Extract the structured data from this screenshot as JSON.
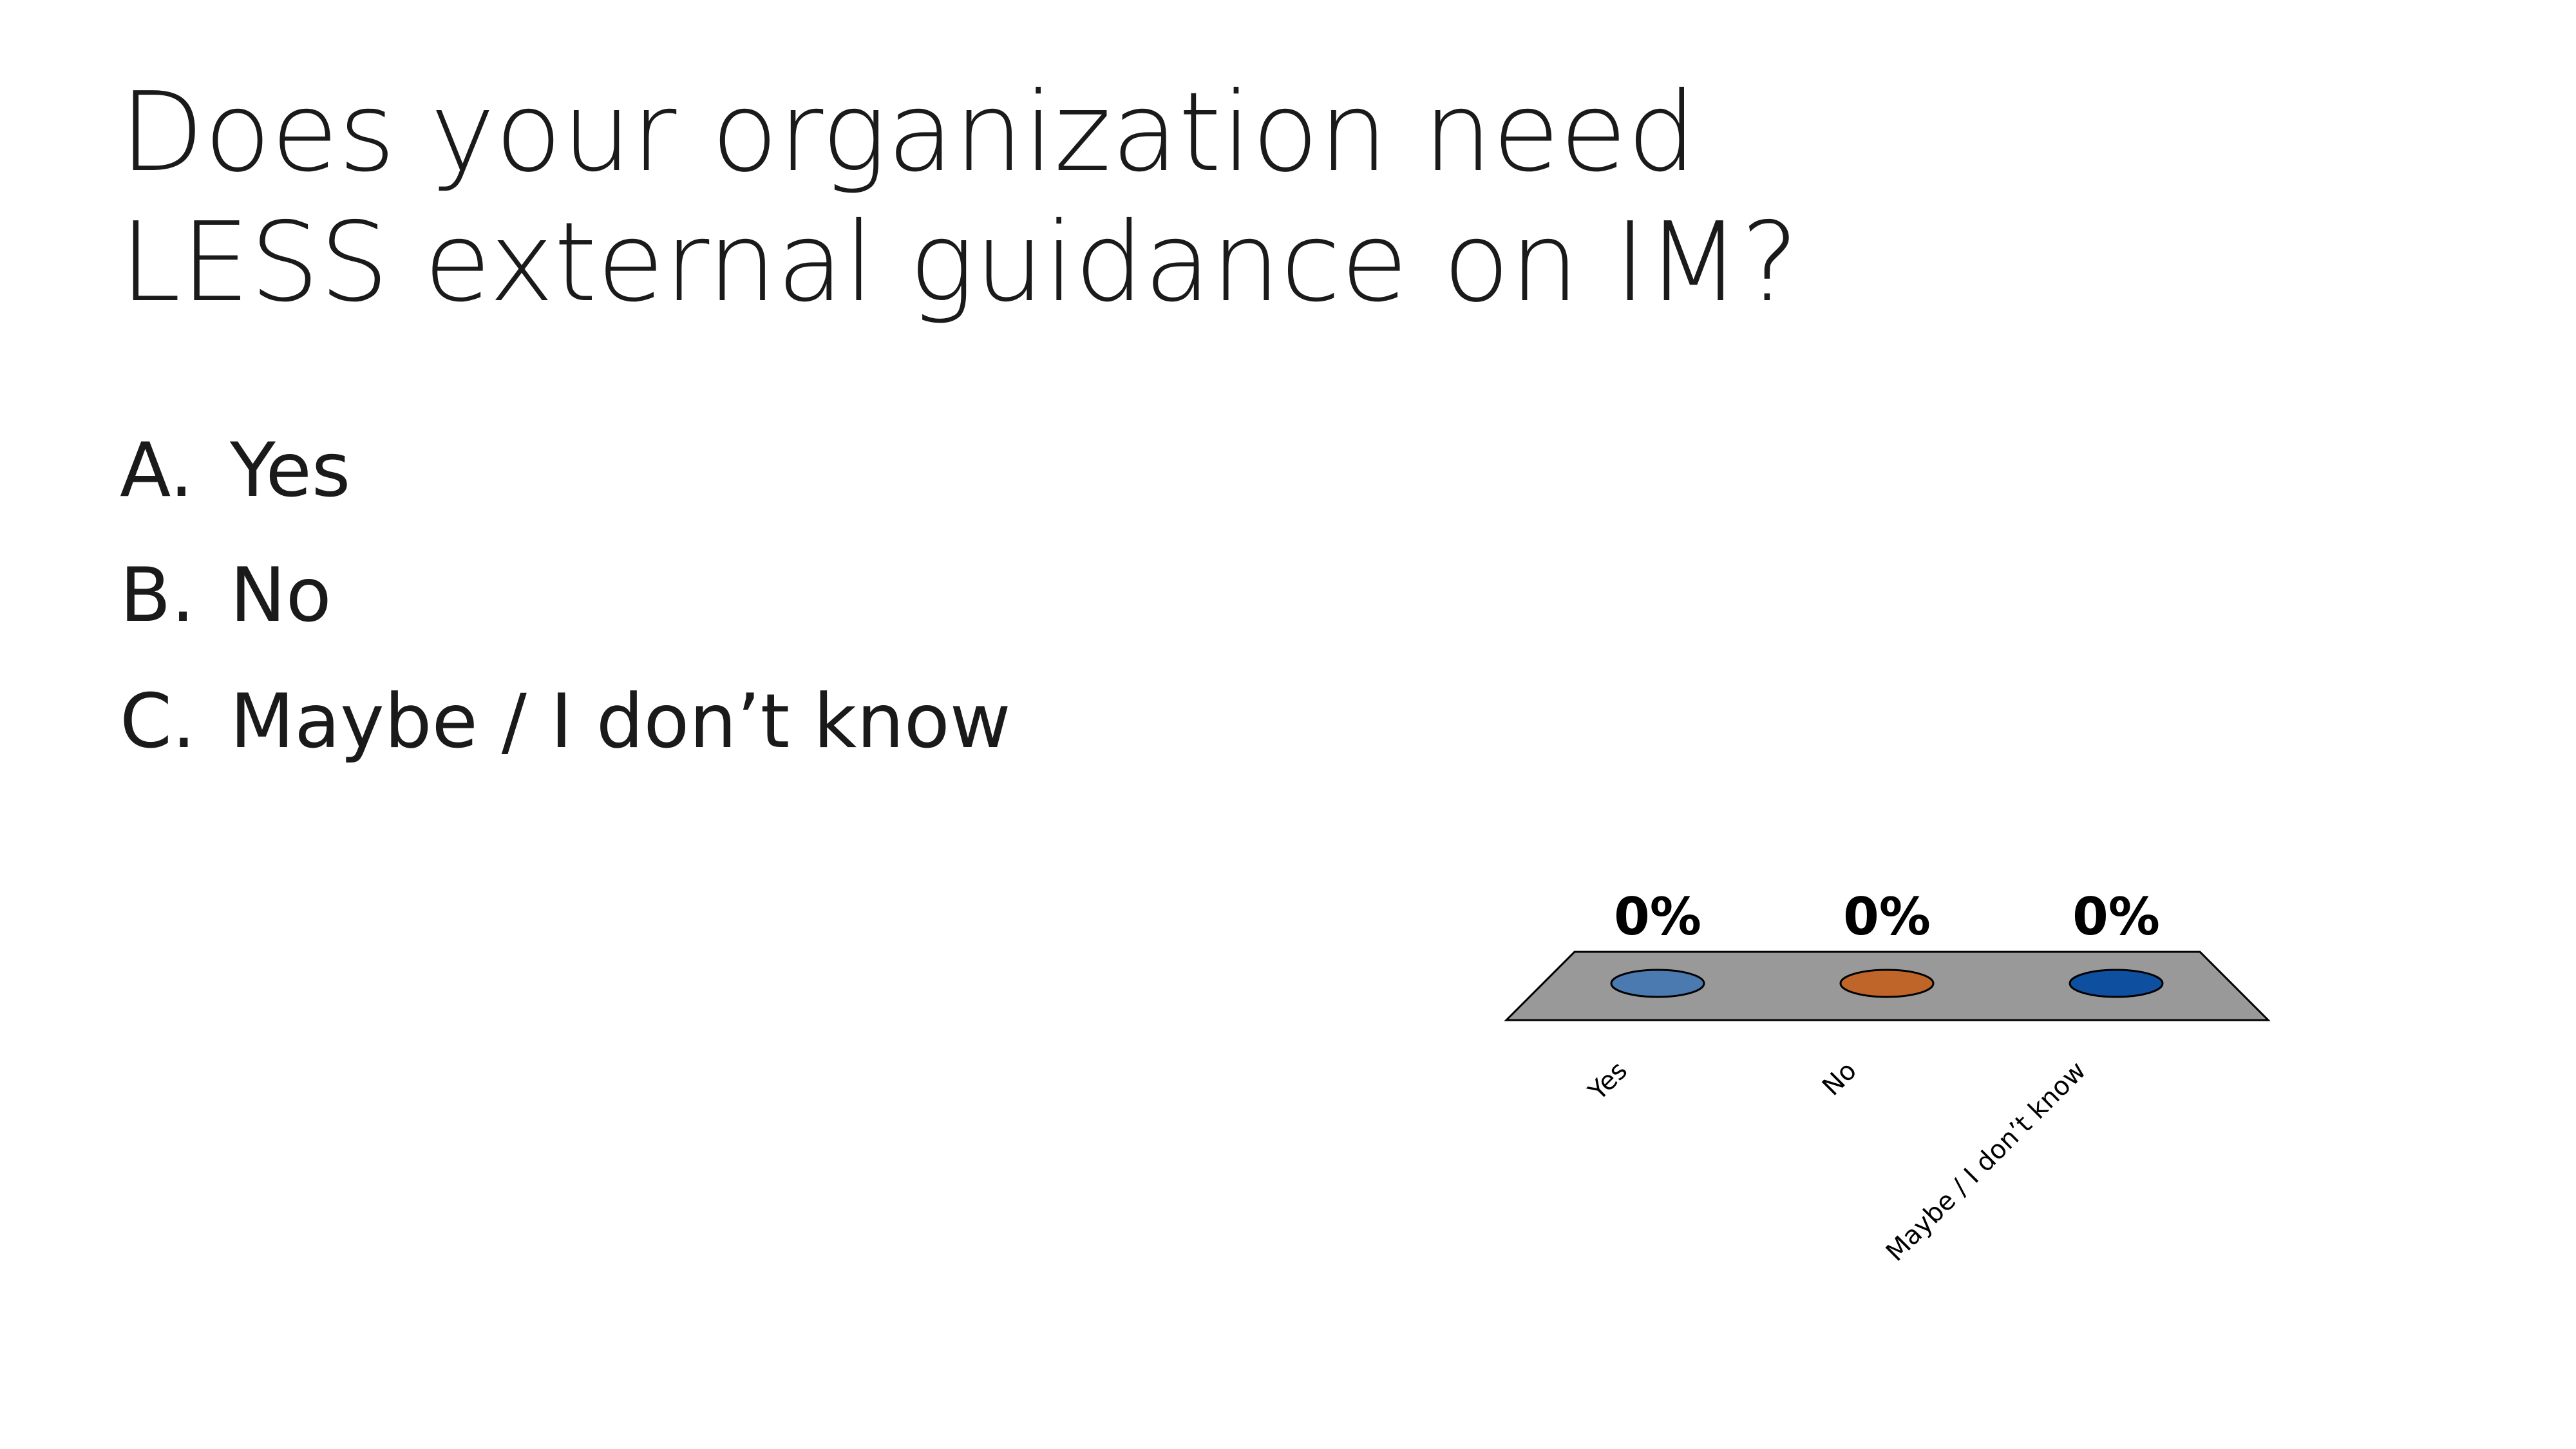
{
  "slide": {
    "title_lines": [
      "Does your organization need",
      "LESS external guidance on IM?"
    ],
    "options": [
      {
        "letter": "A.",
        "text": "Yes"
      },
      {
        "letter": "B.",
        "text": "No"
      },
      {
        "letter": "C.",
        "text": "Maybe / I don’t know"
      }
    ]
  },
  "chart_data": {
    "type": "bar3d",
    "categories": [
      "Yes",
      "No",
      "Maybe / I don’t know"
    ],
    "values": [
      0,
      0,
      0
    ],
    "value_labels": [
      "0%",
      "0%",
      "0%"
    ],
    "colors": [
      "#4a7ab0",
      "#c0652a",
      "#0f4fa0"
    ]
  }
}
